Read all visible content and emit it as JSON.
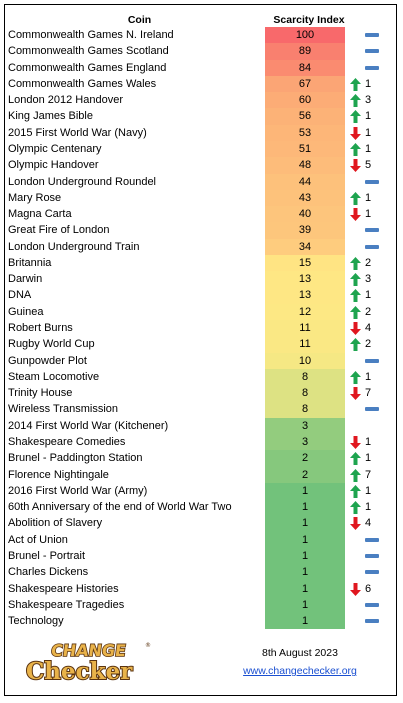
{
  "header": {
    "coin": "Coin",
    "index": "Scarcity Index"
  },
  "rows": [
    {
      "coin": "Commonwealth Games N. Ireland",
      "index": "100",
      "change": "flat",
      "num": "",
      "color": "#f8696b"
    },
    {
      "coin": "Commonwealth Games Scotland",
      "index": "89",
      "change": "flat",
      "num": "",
      "color": "#f9806f"
    },
    {
      "coin": "Commonwealth Games England",
      "index": "84",
      "change": "flat",
      "num": "",
      "color": "#fa8b70"
    },
    {
      "coin": "Commonwealth Games Wales",
      "index": "67",
      "change": "up",
      "num": "1",
      "color": "#fba575"
    },
    {
      "coin": "London 2012 Handover",
      "index": "60",
      "change": "up",
      "num": "3",
      "color": "#fcac76"
    },
    {
      "coin": "King James Bible",
      "index": "56",
      "change": "up",
      "num": "1",
      "color": "#fcb277"
    },
    {
      "coin": "2015 First World War (Navy)",
      "index": "53",
      "change": "down",
      "num": "1",
      "color": "#fdb678"
    },
    {
      "coin": "Olympic Centenary",
      "index": "51",
      "change": "up",
      "num": "1",
      "color": "#fdb879"
    },
    {
      "coin": "Olympic Handover",
      "index": "48",
      "change": "down",
      "num": "5",
      "color": "#fdbc7a"
    },
    {
      "coin": "London Underground Roundel",
      "index": "44",
      "change": "flat",
      "num": "",
      "color": "#fdc17b"
    },
    {
      "coin": "Mary Rose",
      "index": "43",
      "change": "up",
      "num": "1",
      "color": "#fdc27b"
    },
    {
      "coin": "Magna Carta",
      "index": "40",
      "change": "down",
      "num": "1",
      "color": "#fdc57c"
    },
    {
      "coin": "Great Fire of London",
      "index": "39",
      "change": "flat",
      "num": "",
      "color": "#fdc67c"
    },
    {
      "coin": "London Underground Train",
      "index": "34",
      "change": "flat",
      "num": "",
      "color": "#fecc7e"
    },
    {
      "coin": "Britannia",
      "index": "15",
      "change": "up",
      "num": "2",
      "color": "#ffe483"
    },
    {
      "coin": "Darwin",
      "index": "13",
      "change": "up",
      "num": "3",
      "color": "#fee784"
    },
    {
      "coin": "DNA",
      "index": "13",
      "change": "up",
      "num": "1",
      "color": "#fee784"
    },
    {
      "coin": "Guinea",
      "index": "12",
      "change": "up",
      "num": "2",
      "color": "#fde884"
    },
    {
      "coin": "Robert Burns",
      "index": "11",
      "change": "down",
      "num": "4",
      "color": "#fae884"
    },
    {
      "coin": "Rugby World Cup",
      "index": "11",
      "change": "up",
      "num": "2",
      "color": "#fae884"
    },
    {
      "coin": "Gunpowder Plot",
      "index": "10",
      "change": "flat",
      "num": "",
      "color": "#f5e884"
    },
    {
      "coin": "Steam Locomotive",
      "index": "8",
      "change": "up",
      "num": "1",
      "color": "#dde283"
    },
    {
      "coin": "Trinity House",
      "index": "8",
      "change": "down",
      "num": "7",
      "color": "#dde283"
    },
    {
      "coin": "Wireless Transmission",
      "index": "8",
      "change": "flat",
      "num": "",
      "color": "#dde283"
    },
    {
      "coin": "2014 First World War (Kitchener)",
      "index": "3",
      "change": "",
      "num": "",
      "color": "#93cc7e"
    },
    {
      "coin": "Shakespeare Comedies",
      "index": "3",
      "change": "down",
      "num": "1",
      "color": "#93cc7e"
    },
    {
      "coin": "Brunel - Paddington Station",
      "index": "2",
      "change": "up",
      "num": "1",
      "color": "#86c87d"
    },
    {
      "coin": "Florence Nightingale",
      "index": "2",
      "change": "up",
      "num": "7",
      "color": "#86c87d"
    },
    {
      "coin": "2016 First World War (Army)",
      "index": "1",
      "change": "up",
      "num": "1",
      "color": "#72c27b"
    },
    {
      "coin": "60th Anniversary of the end of World War Two",
      "index": "1",
      "change": "up",
      "num": "1",
      "color": "#72c27b"
    },
    {
      "coin": "Abolition of Slavery",
      "index": "1",
      "change": "down",
      "num": "4",
      "color": "#72c27b"
    },
    {
      "coin": "Act of Union",
      "index": "1",
      "change": "flat",
      "num": "",
      "color": "#72c27b"
    },
    {
      "coin": "Brunel - Portrait",
      "index": "1",
      "change": "flat",
      "num": "",
      "color": "#72c27b"
    },
    {
      "coin": "Charles Dickens",
      "index": "1",
      "change": "flat",
      "num": "",
      "color": "#72c27b"
    },
    {
      "coin": "Shakespeare Histories",
      "index": "1",
      "change": "down",
      "num": "6",
      "color": "#72c27b"
    },
    {
      "coin": "Shakespeare Tragedies",
      "index": "1",
      "change": "flat",
      "num": "",
      "color": "#72c27b"
    },
    {
      "coin": "Technology",
      "index": "1",
      "change": "flat",
      "num": "",
      "color": "#72c27b"
    }
  ],
  "logo": {
    "line1": "CHANGE",
    "line2": "Checker",
    "registered": "®"
  },
  "footer": {
    "date": "8th August 2023",
    "website": "www.changechecker.org"
  },
  "colors": {
    "up": "#1ea44f",
    "down": "#e0171f",
    "flat": "#4a7fc1",
    "link": "#1a4fd1",
    "logo_fill": "#e9b34a",
    "logo_outline": "#5a3310"
  }
}
